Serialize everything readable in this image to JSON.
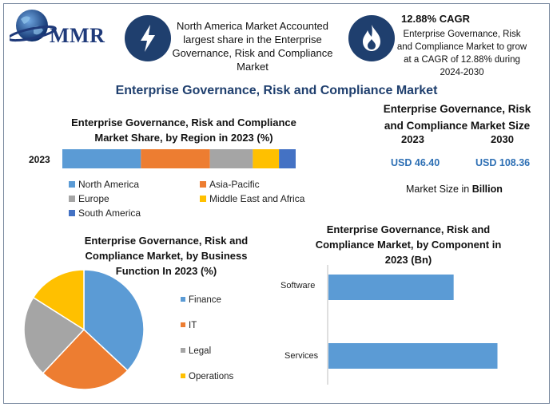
{
  "logo": {
    "text": "MMR"
  },
  "info_box": {
    "text": "North America Market Accounted largest share in the Enterprise Governance, Risk and Compliance Market"
  },
  "cagr_box": {
    "title": "12.88% CAGR",
    "text": "Enterprise Governance, Risk and Compliance Market to grow at a CAGR of 12.88% during 2024-2030"
  },
  "main_title": "Enterprise Governance, Risk and Compliance Market",
  "market_size": {
    "title": "Enterprise Governance, Risk and Compliance Market Size",
    "year_a": "2023",
    "year_b": "2030",
    "value_a": "USD 46.40",
    "value_b": "USD 108.36",
    "unit_prefix": "Market Size in",
    "unit_bold": "Billion"
  },
  "colors": {
    "blue": "#5b9bd5",
    "orange": "#ed7d31",
    "gray": "#a5a5a5",
    "yellow": "#ffc000",
    "darkblue": "#4472c4",
    "navy": "#1f3f6e"
  },
  "icons": {
    "info": "lightning-bolt-icon",
    "cagr": "flame-icon",
    "logo": "globe-icon"
  },
  "chart_data": [
    {
      "type": "bar",
      "stacked": true,
      "orientation": "horizontal",
      "title": "Enterprise Governance, Risk and Compliance Market Share, by Region in 2023 (%)",
      "categories": [
        "2023"
      ],
      "series": [
        {
          "name": "North America",
          "values": [
            33
          ],
          "color": "#5b9bd5"
        },
        {
          "name": "Asia-Pacific",
          "values": [
            29
          ],
          "color": "#ed7d31"
        },
        {
          "name": "Europe",
          "values": [
            18
          ],
          "color": "#a5a5a5"
        },
        {
          "name": "Middle East and Africa",
          "values": [
            11
          ],
          "color": "#ffc000"
        },
        {
          "name": "South America",
          "values": [
            7
          ],
          "color": "#4472c4"
        }
      ],
      "legend": "bottom"
    },
    {
      "type": "pie",
      "title": "Enterprise Governance, Risk and Compliance Market, by Business Function In 2023 (%)",
      "labels": [
        "Finance",
        "IT",
        "Legal",
        "Operations"
      ],
      "values": [
        37,
        25,
        22,
        16
      ],
      "colors": [
        "#5b9bd5",
        "#ed7d31",
        "#a5a5a5",
        "#ffc000"
      ],
      "legend": "right"
    },
    {
      "type": "bar",
      "orientation": "horizontal",
      "title": "Enterprise Governance, Risk and Compliance Market, by Component in 2023 (Bn)",
      "categories": [
        "Software",
        "Services"
      ],
      "values": [
        20,
        27
      ],
      "xlim": [
        0,
        30
      ],
      "color": "#5b9bd5"
    }
  ]
}
